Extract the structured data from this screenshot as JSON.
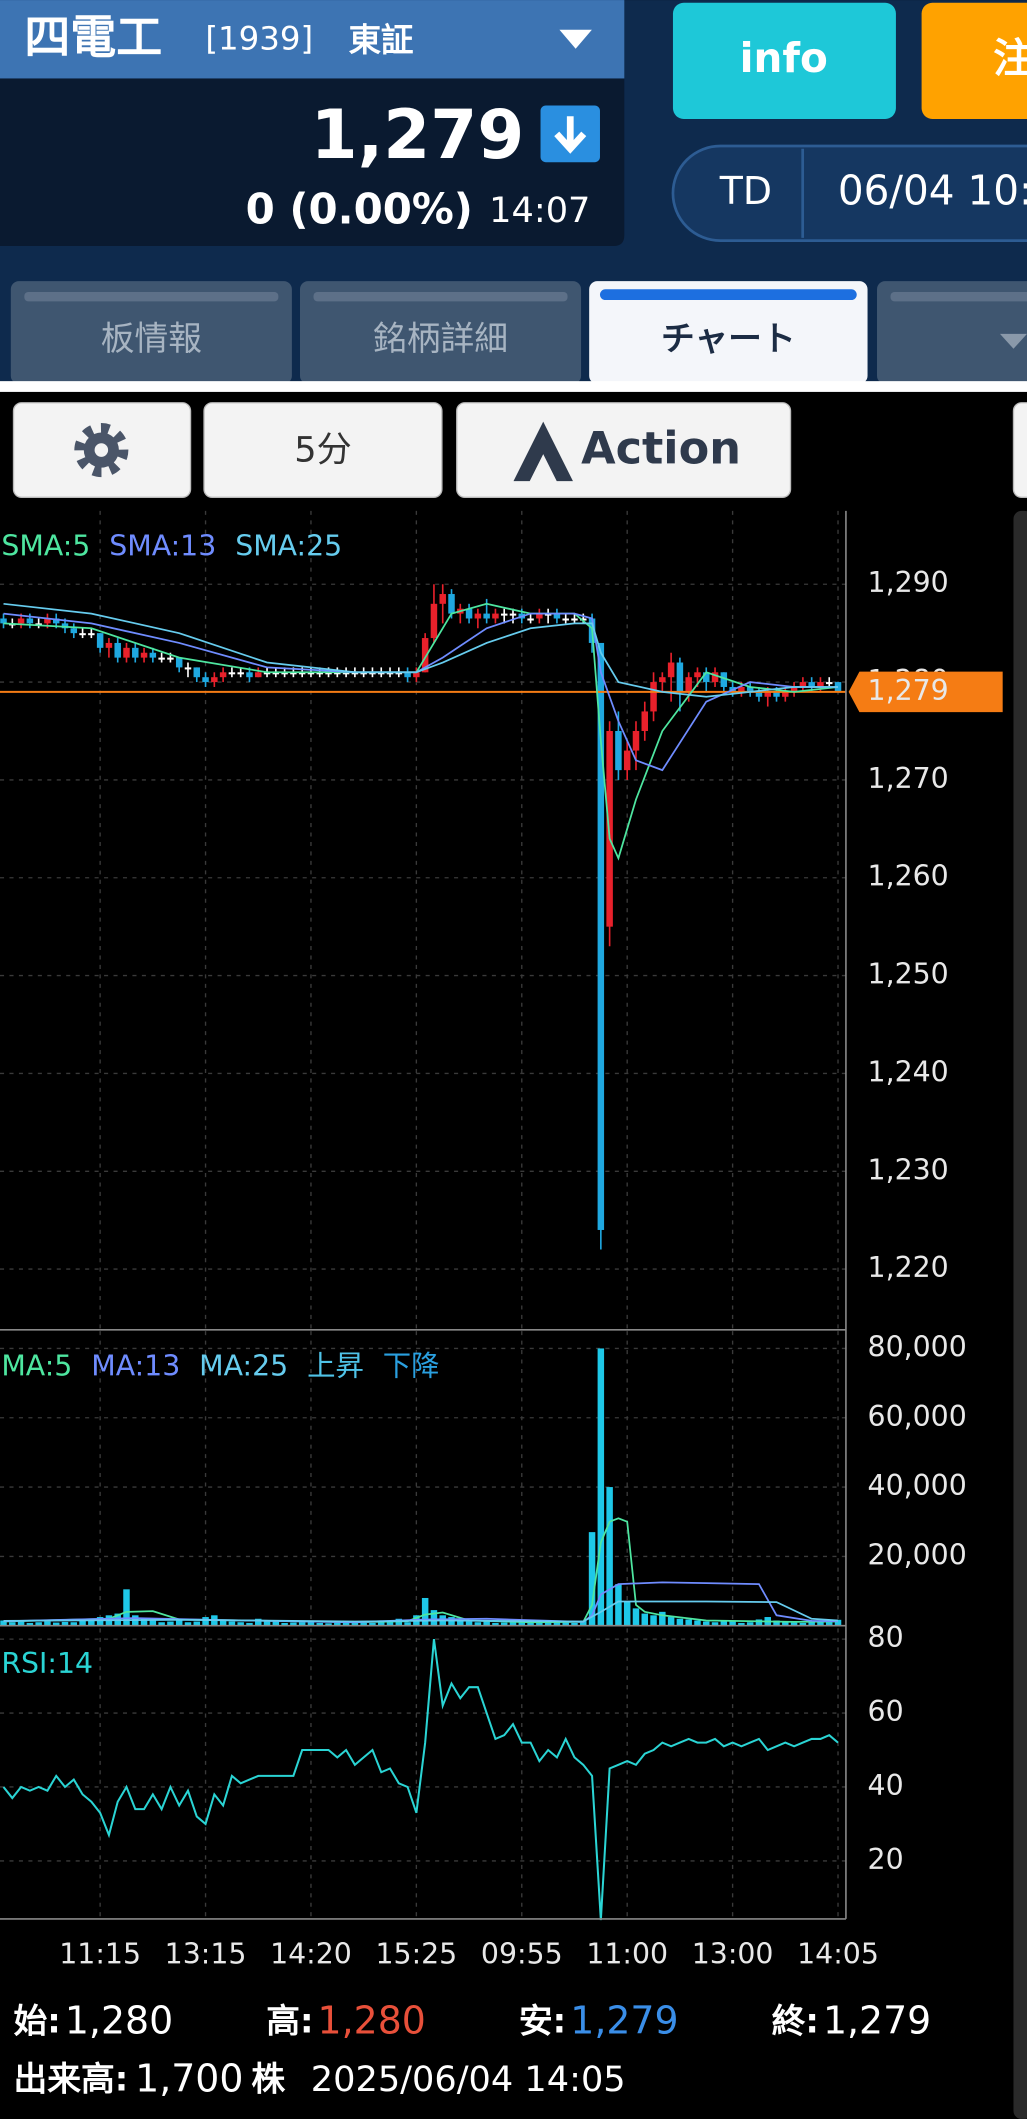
{
  "header": {
    "name": "四電工",
    "code": "[1939]",
    "market": "東証",
    "price": "1,279",
    "change": "0 (0.00%)",
    "time": "14:07"
  },
  "buttons": {
    "info": "info",
    "order": "注",
    "mode": "TD",
    "datetime": "06/04 10:"
  },
  "tabs": [
    "板情報",
    "銘柄詳細",
    "チャート"
  ],
  "toolbar": {
    "interval": "5分",
    "action": "Action"
  },
  "chart_data": [
    {
      "type": "candlestick",
      "up_color": "#e8212b",
      "down_color": "#1fa8e0",
      "flat_color": "#ffffff",
      "ylim": [
        1213.8,
        1297.5
      ],
      "yticks": [
        {
          "value": 1220,
          "label": "1,220"
        },
        {
          "value": 1230,
          "label": "1,230"
        },
        {
          "value": 1240,
          "label": "1,240"
        },
        {
          "value": 1250,
          "label": "1,250"
        },
        {
          "value": 1260,
          "label": "1,260"
        },
        {
          "value": 1270,
          "label": "1,270"
        },
        {
          "value": 1280,
          "label": "1,280"
        },
        {
          "value": 1290,
          "label": "1,290"
        }
      ],
      "grid": true,
      "last_price": {
        "value": 1279,
        "label": "1,279",
        "color": "#f57c14"
      },
      "open": [
        1286.5,
        1286,
        1286,
        1286.5,
        1286,
        1286,
        1286.5,
        1286,
        1285.5,
        1285,
        1285,
        1285,
        1283.5,
        1284,
        1282.5,
        1283.5,
        1282.5,
        1283,
        1282.5,
        1282.5,
        1282.5,
        1281.5,
        1281.5,
        1280.5,
        1280,
        1280.5,
        1281,
        1281,
        1281,
        1280.5,
        1281,
        1281,
        1281,
        1281,
        1281,
        1281,
        1281,
        1281,
        1281,
        1281,
        1281,
        1281,
        1281,
        1281,
        1281,
        1281,
        1281,
        1280.5,
        1281,
        1284.5,
        1288,
        1289,
        1287,
        1287.5,
        1286.5,
        1287,
        1286.5,
        1287,
        1287,
        1287,
        1286.5,
        1286.5,
        1287,
        1287,
        1286.5,
        1286.5,
        1286.5,
        1286.5,
        1284,
        1255,
        1275,
        1271,
        1273,
        1275,
        1277,
        1280,
        1280.5,
        1282,
        1279,
        1280.5,
        1281,
        1280,
        1281,
        1279.5,
        1279,
        1279.5,
        1279,
        1278.5,
        1279,
        1278.5,
        1279,
        1279.5,
        1280,
        1279.5,
        1280,
        1280
      ],
      "high": [
        1287,
        1286.5,
        1287,
        1287,
        1286.5,
        1287,
        1287,
        1286.5,
        1286,
        1285.5,
        1285.5,
        1285,
        1284.5,
        1284.5,
        1284,
        1284,
        1283.5,
        1283.5,
        1283,
        1283,
        1282.5,
        1282,
        1281.5,
        1281,
        1281,
        1281.5,
        1281.5,
        1281.5,
        1281.5,
        1281.5,
        1281.5,
        1281.5,
        1281.5,
        1281.5,
        1281.5,
        1281.5,
        1281.5,
        1281.5,
        1281.5,
        1281.5,
        1281.5,
        1281.5,
        1281.5,
        1281.5,
        1281.5,
        1281.5,
        1281.5,
        1281.5,
        1285,
        1290,
        1290,
        1289.5,
        1288,
        1288,
        1287.5,
        1288.5,
        1287.5,
        1287.5,
        1287.5,
        1287.5,
        1287,
        1287.5,
        1287.5,
        1287.5,
        1287,
        1287,
        1287,
        1287,
        1284,
        1276,
        1277,
        1274,
        1276,
        1278,
        1281,
        1281,
        1283,
        1282.5,
        1281,
        1281.5,
        1281.5,
        1281.5,
        1281,
        1280,
        1280,
        1280,
        1279.5,
        1279.5,
        1279.5,
        1279.5,
        1280,
        1280.5,
        1280.5,
        1280.5,
        1280.5,
        1280
      ],
      "low": [
        1285.5,
        1285.5,
        1285.5,
        1285.5,
        1285.5,
        1285.5,
        1285.5,
        1285,
        1284.5,
        1284.5,
        1284.5,
        1283,
        1282.5,
        1282,
        1282,
        1282,
        1282,
        1282,
        1282,
        1282,
        1281,
        1280.5,
        1280,
        1279.5,
        1279.5,
        1280,
        1280.5,
        1280.5,
        1280,
        1280.5,
        1280.5,
        1280.5,
        1280.5,
        1280.5,
        1280.5,
        1280.5,
        1280.5,
        1280.5,
        1280.5,
        1280.5,
        1280.5,
        1280.5,
        1280.5,
        1280.5,
        1280.5,
        1280.5,
        1280,
        1280,
        1281,
        1284,
        1286,
        1286.5,
        1286,
        1286,
        1285.5,
        1286,
        1286,
        1286,
        1286,
        1286,
        1286,
        1286,
        1286,
        1286,
        1286,
        1286,
        1286,
        1283,
        1222,
        1253,
        1270,
        1270,
        1271,
        1274,
        1276,
        1279,
        1278,
        1277,
        1278,
        1279.5,
        1279,
        1279.5,
        1279,
        1278.5,
        1278.5,
        1278.5,
        1278,
        1277.5,
        1278,
        1278,
        1278.5,
        1279,
        1279,
        1279,
        1279.5,
        1279
      ],
      "close": [
        1286,
        1286,
        1286.5,
        1286,
        1286,
        1286.5,
        1286,
        1285.5,
        1285,
        1285,
        1285,
        1283.5,
        1284,
        1282.5,
        1283.5,
        1282.5,
        1283,
        1282.5,
        1282.5,
        1282.5,
        1281.5,
        1281.5,
        1280.5,
        1280,
        1280.5,
        1281,
        1281,
        1281,
        1280.5,
        1281,
        1281,
        1281,
        1281,
        1281,
        1281,
        1281,
        1281,
        1281,
        1281,
        1281,
        1281,
        1281,
        1281,
        1281,
        1281,
        1281,
        1280.5,
        1281,
        1284.5,
        1288,
        1289,
        1287,
        1287.5,
        1286.5,
        1287,
        1286.5,
        1287,
        1287,
        1287,
        1286.5,
        1286.5,
        1287,
        1287,
        1286.5,
        1286.5,
        1286.5,
        1286.5,
        1284,
        1224,
        1275,
        1271,
        1273,
        1275,
        1277,
        1280,
        1280.5,
        1282,
        1279,
        1280.5,
        1281,
        1280,
        1281,
        1279.5,
        1279,
        1279.5,
        1279,
        1278.5,
        1279,
        1278.5,
        1279,
        1279.5,
        1280,
        1279.5,
        1280,
        1280,
        1279
      ],
      "series": [
        {
          "name": "SMA:5",
          "color": "#4ee6a0",
          "x": [
            0,
            10,
            20,
            30,
            40,
            47,
            49,
            51,
            55,
            60,
            65,
            67,
            68,
            69,
            70,
            72,
            75,
            80,
            85,
            90,
            95
          ],
          "values": [
            1286,
            1285.5,
            1282.5,
            1281,
            1281,
            1281,
            1284,
            1287,
            1288,
            1287,
            1287,
            1285.5,
            1274,
            1264,
            1262,
            1268,
            1275,
            1281,
            1279.5,
            1279,
            1279.5
          ]
        },
        {
          "name": "SMA:13",
          "color": "#6f8cff",
          "x": [
            0,
            10,
            20,
            30,
            40,
            47,
            50,
            55,
            60,
            65,
            67,
            68,
            70,
            72,
            75,
            80,
            85,
            90,
            95
          ],
          "values": [
            1287,
            1286,
            1284,
            1281.5,
            1281,
            1281,
            1282.5,
            1285.5,
            1287,
            1287,
            1286.5,
            1281,
            1276,
            1272,
            1271,
            1278,
            1280,
            1279.5,
            1279.5
          ]
        },
        {
          "name": "SMA:25",
          "color": "#66ccee",
          "x": [
            0,
            10,
            20,
            30,
            40,
            47,
            50,
            55,
            60,
            65,
            67,
            68,
            70,
            75,
            80,
            85,
            90,
            95
          ],
          "values": [
            1288,
            1287,
            1285,
            1282,
            1281,
            1281,
            1282,
            1284,
            1285.5,
            1286,
            1286,
            1283,
            1280,
            1279,
            1278.5,
            1279,
            1279.5,
            1279.5
          ]
        }
      ]
    },
    {
      "type": "bar",
      "color": "#1ec8e8",
      "ylim": [
        0,
        85000
      ],
      "yticks": [
        {
          "value": 20000,
          "label": "20,000"
        },
        {
          "value": 40000,
          "label": "40,000"
        },
        {
          "value": 60000,
          "label": "60,000"
        },
        {
          "value": 80000,
          "label": "80,000"
        }
      ],
      "grid": true,
      "values": [
        1500,
        1000,
        1200,
        800,
        1000,
        1200,
        900,
        1100,
        1000,
        2000,
        1500,
        2500,
        3000,
        3500,
        10500,
        3000,
        2000,
        1500,
        1000,
        1200,
        1500,
        1000,
        1200,
        2500,
        3000,
        1800,
        1200,
        1000,
        800,
        2000,
        1500,
        1200,
        800,
        900,
        1000,
        1200,
        800,
        700,
        900,
        800,
        1000,
        900,
        800,
        1200,
        1500,
        2000,
        1000,
        3000,
        8000,
        4500,
        3000,
        2500,
        1500,
        1200,
        1000,
        1200,
        800,
        900,
        1000,
        1200,
        800,
        900,
        1000,
        1200,
        900,
        800,
        1500,
        27000,
        80000,
        40000,
        12000,
        7000,
        5000,
        3500,
        3000,
        4000,
        2500,
        2000,
        1800,
        1500,
        1200,
        1000,
        1500,
        1200,
        800,
        1000,
        1800,
        2500,
        1500,
        1000,
        900,
        800,
        1200,
        1500,
        1000,
        1700
      ],
      "series": [
        {
          "name": "MA:5",
          "color": "#4ee6a0",
          "x": [
            0,
            12,
            14,
            17,
            20,
            40,
            46,
            48,
            50,
            53,
            60,
            66,
            67,
            68,
            69,
            70,
            71,
            72,
            73,
            75,
            80,
            90,
            95
          ],
          "values": [
            1200,
            2000,
            4000,
            4200,
            1800,
            1000,
            1300,
            3200,
            3800,
            1500,
            1000,
            1100,
            6000,
            24000,
            30000,
            31000,
            30000,
            6000,
            4000,
            3000,
            1500,
            1100,
            1200
          ]
        },
        {
          "name": "MA:13",
          "color": "#6f8cff",
          "x": [
            0,
            15,
            25,
            40,
            48,
            55,
            66,
            67,
            68,
            70,
            75,
            80,
            86,
            88,
            92,
            95
          ],
          "values": [
            1300,
            2200,
            1600,
            1000,
            1800,
            2000,
            1100,
            3000,
            9000,
            12000,
            12500,
            12300,
            12000,
            3000,
            1400,
            1300
          ]
        },
        {
          "name": "MA:25",
          "color": "#66ccee",
          "x": [
            0,
            20,
            40,
            50,
            66,
            68,
            70,
            80,
            88,
            92,
            95
          ],
          "values": [
            1400,
            1700,
            1200,
            1500,
            1200,
            4000,
            7000,
            7000,
            6800,
            2000,
            1500
          ]
        }
      ],
      "extra_legend": [
        {
          "name": "上昇",
          "color": "#4fc3e8"
        },
        {
          "name": "下降",
          "color": "#2aa0e0"
        }
      ]
    },
    {
      "type": "line",
      "name": "RSI:14",
      "color": "#2ad4d4",
      "ylim": [
        4.3,
        82.9
      ],
      "yticks": [
        20,
        40,
        60,
        80
      ],
      "grid": true,
      "xlim": [
        -0.4,
        95.9
      ],
      "xticks": [
        {
          "value": 11,
          "label": "11:15"
        },
        {
          "value": 23,
          "label": "13:15"
        },
        {
          "value": 35,
          "label": "14:20"
        },
        {
          "value": 47,
          "label": "15:25"
        },
        {
          "value": 59,
          "label": "09:55"
        },
        {
          "value": 71,
          "label": "11:00"
        },
        {
          "value": 83,
          "label": "13:00"
        },
        {
          "value": 95,
          "label": "14:05"
        }
      ],
      "values": [
        40,
        37,
        40,
        39,
        40,
        39,
        43,
        40,
        42,
        38,
        36,
        33,
        27,
        36,
        40,
        34,
        34,
        38,
        34,
        40,
        35,
        39,
        32,
        30,
        38,
        35,
        43,
        41,
        42,
        43,
        43,
        43,
        43,
        43,
        50,
        50,
        50,
        50,
        48,
        50,
        46,
        48,
        50,
        44,
        45,
        41,
        40,
        33,
        52,
        80,
        62,
        68,
        64,
        67,
        67,
        60,
        53,
        54,
        57,
        52,
        52,
        47,
        50,
        48,
        53,
        48,
        46,
        43,
        4,
        45,
        46,
        47,
        46,
        49,
        50,
        52,
        51,
        52,
        53,
        52,
        52,
        53,
        51,
        52,
        51,
        52,
        53,
        50,
        51,
        52,
        51,
        52,
        53,
        53,
        54,
        52
      ]
    }
  ],
  "footer": {
    "items": [
      {
        "label": "始:",
        "value": "1,280"
      },
      {
        "label": "高:",
        "value": "1,280"
      },
      {
        "label": "安:",
        "value": "1,279"
      },
      {
        "label": "終:",
        "value": "1,279"
      }
    ],
    "volume_label": "出来高:",
    "volume": "1,700",
    "unit": "株",
    "datetime": "2025/06/04 14:05"
  }
}
